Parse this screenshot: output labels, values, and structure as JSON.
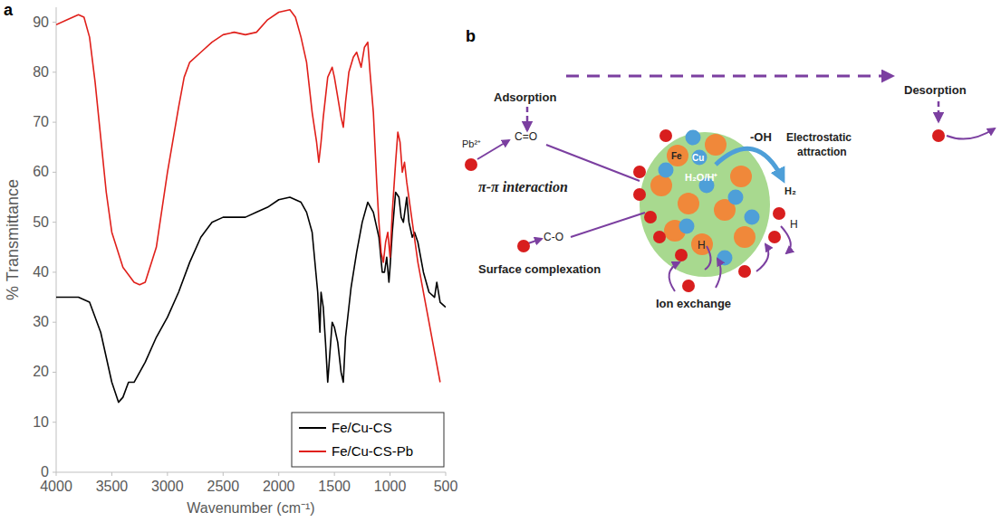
{
  "chart_data": {
    "type": "line",
    "panel_label": "a",
    "x_label": "Wavenumber (cm⁻¹)",
    "y_label": "% Transmittance",
    "xlim": [
      4000,
      500
    ],
    "xticks": [
      4000,
      3500,
      3000,
      2500,
      2000,
      1500,
      1000,
      500
    ],
    "ylim": [
      0,
      93
    ],
    "yticks": [
      0,
      10,
      20,
      30,
      40,
      50,
      60,
      70,
      80,
      90
    ],
    "grid": false,
    "legend": "lower right",
    "series": [
      {
        "name": "Fe/Cu-CS",
        "color": "#000000",
        "line_style": "solid",
        "x": [
          4000,
          3800,
          3700,
          3600,
          3500,
          3440,
          3400,
          3350,
          3300,
          3200,
          3100,
          3000,
          2900,
          2800,
          2700,
          2600,
          2500,
          2300,
          2200,
          2100,
          2000,
          1900,
          1800,
          1750,
          1700,
          1650,
          1630,
          1620,
          1600,
          1580,
          1560,
          1540,
          1520,
          1500,
          1470,
          1440,
          1420,
          1400,
          1350,
          1300,
          1250,
          1200,
          1150,
          1100,
          1070,
          1050,
          1030,
          1010,
          1000,
          980,
          950,
          920,
          900,
          880,
          850,
          830,
          800,
          780,
          750,
          700,
          650,
          600,
          580,
          550,
          500
        ],
        "values": [
          35,
          35,
          34,
          28,
          18,
          14,
          15,
          18,
          18,
          22,
          27,
          31,
          36,
          42,
          47,
          50,
          51,
          51,
          52,
          53,
          54.5,
          55,
          54,
          52,
          48,
          36,
          28,
          36,
          33,
          26,
          18,
          24,
          30,
          29,
          26,
          20,
          18,
          27,
          37,
          44,
          50,
          54,
          52,
          47,
          40,
          40,
          43,
          38,
          41,
          48,
          56,
          55,
          51,
          50,
          55,
          50,
          47,
          48,
          46,
          40,
          36,
          35,
          38,
          34,
          33
        ]
      },
      {
        "name": "Fe/Cu-CS-Pb",
        "color": "#e0201b",
        "line_style": "solid",
        "x": [
          4000,
          3900,
          3800,
          3750,
          3700,
          3650,
          3600,
          3550,
          3500,
          3400,
          3300,
          3250,
          3200,
          3100,
          3000,
          2900,
          2850,
          2800,
          2700,
          2600,
          2500,
          2400,
          2300,
          2200,
          2100,
          2000,
          1900,
          1850,
          1800,
          1750,
          1700,
          1660,
          1640,
          1620,
          1600,
          1560,
          1520,
          1500,
          1470,
          1440,
          1420,
          1400,
          1370,
          1330,
          1300,
          1260,
          1230,
          1200,
          1180,
          1150,
          1120,
          1100,
          1080,
          1060,
          1040,
          1020,
          1000,
          980,
          950,
          930,
          910,
          890,
          870,
          850,
          800,
          750,
          700,
          650,
          600,
          550
        ],
        "values": [
          89.5,
          90.5,
          91.5,
          91,
          87,
          78,
          67,
          56,
          48,
          41,
          38,
          37.5,
          38,
          45,
          60,
          73,
          79,
          82,
          84,
          86,
          87.5,
          88,
          87.5,
          88,
          90.5,
          92,
          92.5,
          91,
          87,
          82,
          72,
          66,
          62,
          66,
          71,
          79,
          81,
          79,
          75,
          71,
          69,
          74,
          80,
          83,
          84,
          81,
          85,
          86,
          80,
          72,
          58,
          50,
          44,
          42,
          46,
          48,
          43,
          52,
          62,
          68,
          66,
          60,
          62,
          58,
          50,
          42,
          36,
          30,
          24,
          18
        ]
      }
    ]
  },
  "diagram": {
    "panel_label": "b",
    "texts": {
      "adsorption": "Adsorption",
      "desorption": "Desorption",
      "pb": "Pb²⁺",
      "c_double_o": "C=O",
      "pi": "π-π interaction",
      "oh": "-OH",
      "electrostatic": "Electrostatic attraction",
      "fe": "Fe",
      "cu": "Cu",
      "h2o": "H₂O/H⁺",
      "h2": "H₂",
      "h_right": "H",
      "h_left": "H",
      "c_single_o": "C-O",
      "surface": "Surface complexation",
      "ion": "Ion exchange"
    }
  }
}
